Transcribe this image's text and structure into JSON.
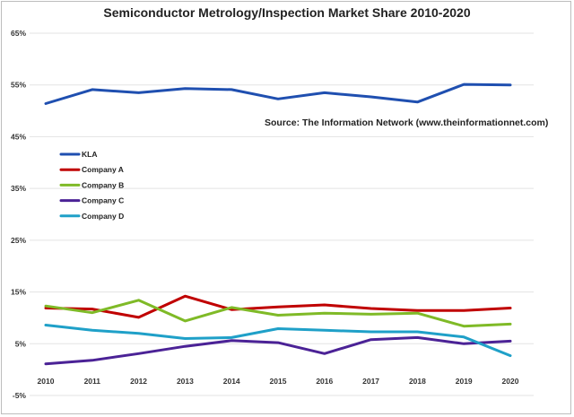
{
  "chart_data": {
    "type": "line",
    "title": "Semiconductor Metrology/Inspection Market Share 2010-2020",
    "annotation": "Source: The Information Network (www.theinformationnet.com)",
    "xlabel": "",
    "ylabel": "",
    "x": [
      "2010",
      "2011",
      "2012",
      "2013",
      "2014",
      "2015",
      "2016",
      "2017",
      "2018",
      "2019",
      "2020"
    ],
    "ylim": [
      -5,
      65
    ],
    "yticks": [
      -5,
      5,
      15,
      25,
      35,
      45,
      55,
      65
    ],
    "ytick_labels": [
      "-5%",
      "5%",
      "15%",
      "25%",
      "35%",
      "45%",
      "55%",
      "65%"
    ],
    "grid": true,
    "legend": "left",
    "series": [
      {
        "name": "KLA",
        "color": "#1f4fb0",
        "values": [
          51.4,
          54.1,
          53.5,
          54.3,
          54.1,
          52.3,
          53.5,
          52.7,
          51.7,
          55.1,
          55.0
        ]
      },
      {
        "name": "Company A",
        "color": "#c00000",
        "values": [
          11.9,
          11.7,
          10.1,
          14.2,
          11.6,
          12.1,
          12.5,
          11.8,
          11.4,
          11.4,
          11.9
        ]
      },
      {
        "name": "Company B",
        "color": "#7fba27",
        "values": [
          12.3,
          11.0,
          13.4,
          9.4,
          12.0,
          10.5,
          10.9,
          10.7,
          10.9,
          8.4,
          8.8
        ]
      },
      {
        "name": "Company C",
        "color": "#4b2296",
        "values": [
          1.1,
          1.8,
          3.1,
          4.5,
          5.6,
          5.2,
          3.1,
          5.8,
          6.2,
          5.0,
          5.5
        ]
      },
      {
        "name": "Company D",
        "color": "#1fa0c8",
        "values": [
          8.6,
          7.6,
          7.0,
          6.0,
          6.2,
          7.9,
          7.6,
          7.3,
          7.3,
          6.3,
          2.7
        ]
      }
    ]
  }
}
